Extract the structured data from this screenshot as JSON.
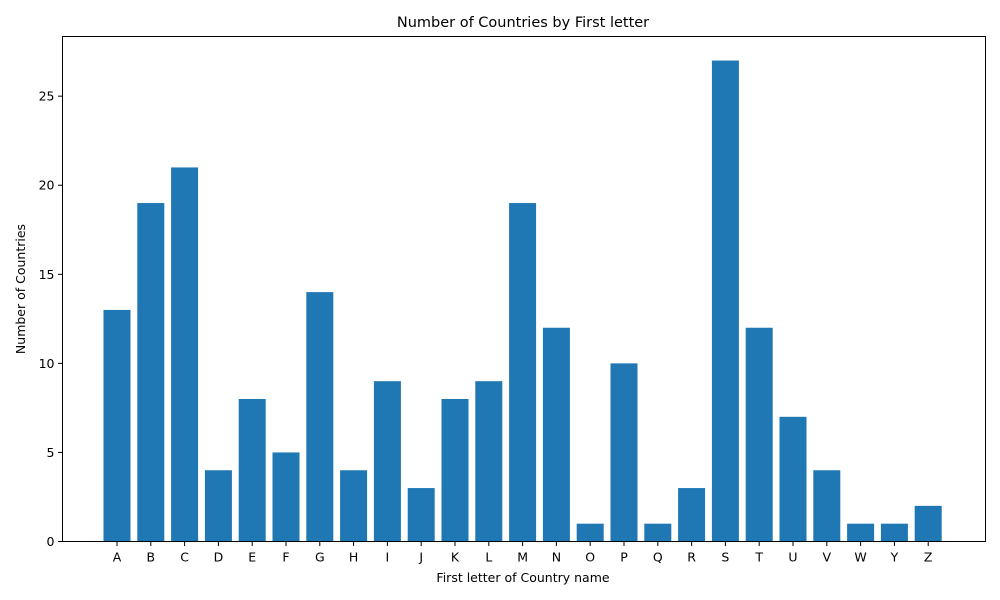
{
  "chart_data": {
    "type": "bar",
    "title": "Number of Countries by First letter",
    "xlabel": "First letter of Country name",
    "ylabel": "Number of Countries",
    "categories": [
      "A",
      "B",
      "C",
      "D",
      "E",
      "F",
      "G",
      "H",
      "I",
      "J",
      "K",
      "L",
      "M",
      "N",
      "O",
      "P",
      "Q",
      "R",
      "S",
      "T",
      "U",
      "V",
      "W",
      "Y",
      "Z"
    ],
    "values": [
      13,
      19,
      21,
      4,
      8,
      5,
      14,
      4,
      9,
      3,
      8,
      9,
      19,
      12,
      1,
      10,
      1,
      3,
      27,
      12,
      7,
      4,
      1,
      1,
      2
    ],
    "ylim": [
      0,
      28.35
    ],
    "yticks": [
      0,
      5,
      10,
      15,
      20,
      25
    ],
    "grid": false,
    "bar_color": "#1f77b4"
  }
}
